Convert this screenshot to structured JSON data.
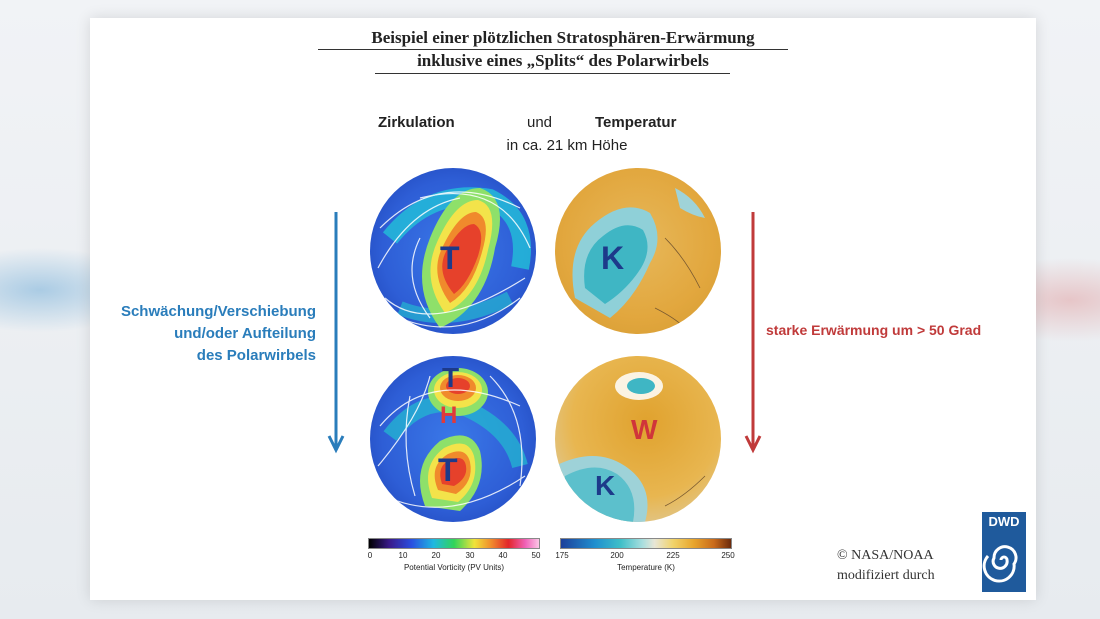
{
  "title": {
    "line1": "Beispiel einer plötzlichen Stratosphären-Erwärmung",
    "line2": "inklusive eines „Splits“ des Polarwirbels"
  },
  "header": {
    "zirkulation": "Zirkulation",
    "und": "und",
    "temperatur": "Temperatur",
    "subtitle": "in ca. 21 km Höhe"
  },
  "left_caption": {
    "line1": "Schwächung/Verschiebung",
    "line2": "und/oder Aufteilung",
    "line3": "des Polarwirbels"
  },
  "right_caption": "starke Erwärmung um > 50 Grad",
  "globes": {
    "top_left": {
      "letters": [
        "T"
      ]
    },
    "top_right": {
      "letters": [
        "K"
      ]
    },
    "bottom_left": {
      "letters": [
        "T",
        "H",
        "T"
      ]
    },
    "bottom_right": {
      "letters": [
        "W",
        "K"
      ]
    }
  },
  "colorbars": {
    "pv": {
      "label": "Potential Vorticity (PV Units)",
      "ticks": [
        "0",
        "10",
        "20",
        "30",
        "40",
        "50"
      ]
    },
    "temp": {
      "label": "Temperature (K)",
      "ticks": [
        "175",
        "200",
        "225",
        "250"
      ]
    }
  },
  "credit": {
    "line1": "© NASA/NOAA",
    "line2": "modifiziert durch"
  },
  "logo": {
    "text": "DWD"
  },
  "colors": {
    "blue_accent": "#2a7dbb",
    "red_accent": "#c03a3a",
    "logo_bg": "#1f5a9c"
  }
}
